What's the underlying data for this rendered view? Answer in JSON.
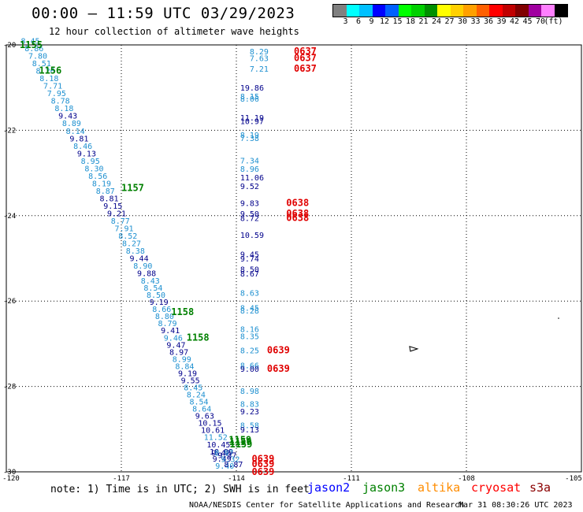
{
  "title": "00:00 – 11:59 UTC 03/29/2023",
  "subtitle": "12 hour collection of altimeter wave heights",
  "colorbar": {
    "colors": [
      "#808080",
      "#00ffff",
      "#00c0ff",
      "#0000ff",
      "#0060ff",
      "#00ff00",
      "#00d000",
      "#009000",
      "#ffff00",
      "#ffd000",
      "#ffa000",
      "#ff6000",
      "#ff0000",
      "#c00000",
      "#800000",
      "#a000a0",
      "#ff80ff",
      "#000000"
    ],
    "labels": [
      "3",
      "6",
      "9",
      "12",
      "15",
      "18",
      "21",
      "24",
      "27",
      "30",
      "33",
      "36",
      "39",
      "42",
      "45",
      "70",
      "(ft)"
    ]
  },
  "axes": {
    "lat_ticks": [
      "-20",
      "-22",
      "-24",
      "-26",
      "-28",
      "-30"
    ],
    "lon_ticks": [
      "-120",
      "-117",
      "-114",
      "-111",
      "-108",
      "-105"
    ]
  },
  "note": "note:  1) Time is in UTC;  2) SWH is in feet",
  "legend": [
    {
      "name": "jason2",
      "color": "#0000ff"
    },
    {
      "name": "jason3",
      "color": "#008000"
    },
    {
      "name": "altika",
      "color": "#ff8c00"
    },
    {
      "name": "cryosat",
      "color": "#ff0000"
    },
    {
      "name": "s3a",
      "color": "#8b0000"
    }
  ],
  "credit": "NOAA/NESDIS Center for Satellite Applications and Research",
  "timestamp": "Mar 31 08:30:26 UTC 2023",
  "colors": {
    "light": "#1e90d0",
    "dark": "#00008b",
    "time_green": "#008000",
    "time_red": "#e00000"
  },
  "track1": {
    "values": [
      "8.45",
      "8.86",
      "7.80",
      "8.51",
      "8.26",
      "8.18",
      "7.71",
      "7.95",
      "8.78",
      "8.18",
      "9.43",
      "8.89",
      "8.14",
      "9.81",
      "8.46",
      "9.13",
      "8.95",
      "8.30",
      "8.56",
      "8.19",
      "8.87",
      "8.81",
      "9.15",
      "9.21",
      "8.77",
      "7.91",
      "8.52",
      "8.27",
      "8.38",
      "9.44",
      "8.90",
      "9.88",
      "8.43",
      "8.54",
      "8.50",
      "9.19",
      "8.66",
      "8.80",
      "8.79",
      "9.41",
      "9.46",
      "9.47",
      "8.97",
      "8.99",
      "8.84",
      "9.19",
      "9.55",
      "8.45",
      "8.24",
      "8.54",
      "8.64",
      "9.63",
      "10.15",
      "10.61",
      "11.52",
      "10.45",
      "10.99",
      "9.49",
      "9.40"
    ],
    "dark_idx": [
      10,
      13,
      15,
      21,
      22,
      23,
      29,
      31,
      35,
      39,
      41,
      42,
      45,
      46,
      51,
      52,
      53,
      55,
      56,
      57
    ],
    "times": [
      {
        "t": "1155",
        "lat": -20.0,
        "lon": -119.65
      },
      {
        "t": "1156",
        "lat": -20.6,
        "lon": -119.15
      },
      {
        "t": "1157",
        "lat": -23.35,
        "lon": -117.0
      },
      {
        "t": "1158",
        "lat": -26.25,
        "lon": -115.7
      },
      {
        "t": "1158",
        "lat": -26.85,
        "lon": -115.3
      }
    ]
  },
  "track2": {
    "values": [
      {
        "v": "8.29",
        "lat": -20.15
      },
      {
        "v": "7.63",
        "lat": -20.3
      },
      {
        "v": "7.21",
        "lat": -20.55
      },
      {
        "v": "19.86",
        "lat": -21.0
      },
      {
        "v": "8.15",
        "lat": -21.2
      },
      {
        "v": "8.06",
        "lat": -21.25
      },
      {
        "v": "11.19",
        "lat": -21.7
      },
      {
        "v": "10.97",
        "lat": -21.78
      },
      {
        "v": "8.19",
        "lat": -22.1
      },
      {
        "v": "7.38",
        "lat": -22.18
      },
      {
        "v": "7.34",
        "lat": -22.7
      },
      {
        "v": "8.96",
        "lat": -22.9
      },
      {
        "v": "11.06",
        "lat": -23.1
      },
      {
        "v": "9.52",
        "lat": -23.3
      },
      {
        "v": "9.83",
        "lat": -23.7
      },
      {
        "v": "9.50",
        "lat": -23.95
      },
      {
        "v": "8.72",
        "lat": -24.05
      },
      {
        "v": "10.59",
        "lat": -24.45
      },
      {
        "v": "9.45",
        "lat": -24.9
      },
      {
        "v": "9.74",
        "lat": -25.0
      },
      {
        "v": "8.50",
        "lat": -25.25
      },
      {
        "v": "8.67",
        "lat": -25.35
      },
      {
        "v": "8.63",
        "lat": -25.8
      },
      {
        "v": "8.45",
        "lat": -26.15
      },
      {
        "v": "8.28",
        "lat": -26.22
      },
      {
        "v": "8.16",
        "lat": -26.65
      },
      {
        "v": "8.35",
        "lat": -26.82
      },
      {
        "v": "8.25",
        "lat": -27.15
      },
      {
        "v": "8.66",
        "lat": -27.5
      },
      {
        "v": "9.00",
        "lat": -27.58
      },
      {
        "v": "8.98",
        "lat": -28.1
      },
      {
        "v": "8.83",
        "lat": -28.4
      },
      {
        "v": "9.23",
        "lat": -28.58
      },
      {
        "v": "8.58",
        "lat": -28.9
      },
      {
        "v": "9.13",
        "lat": -29.0
      }
    ],
    "dark": [
      "19.86",
      "11.19",
      "10.97",
      "11.06",
      "9.52",
      "9.83",
      "9.50",
      "8.72",
      "10.59",
      "9.45",
      "9.74",
      "8.50",
      "8.67",
      "9.00",
      "9.23",
      "9.13"
    ]
  },
  "track3": {
    "values": [
      {
        "v": "9.42",
        "lat": -29.55
      },
      {
        "v": "8.97",
        "lat": -29.55
      },
      {
        "v": "9.37",
        "lat": -29.6
      },
      {
        "v": "9.32",
        "lat": -29.7
      },
      {
        "v": "8.87",
        "lat": -29.82
      }
    ]
  },
  "times_right": [
    {
      "t": "0637",
      "lat": -20.15
    },
    {
      "t": "0637",
      "lat": -20.3
    },
    {
      "t": "0637",
      "lat": -20.55
    },
    {
      "t": "0638",
      "lat": -23.7
    },
    {
      "t": "0638",
      "lat": -23.95
    },
    {
      "t": "0638",
      "lat": -24.05
    },
    {
      "t": "0639",
      "lat": -27.15
    },
    {
      "t": "0639",
      "lat": -27.58
    },
    {
      "t": "0639",
      "lat": -29.7
    },
    {
      "t": "0639",
      "lat": -29.82
    },
    {
      "t": "0639",
      "lat": -30.0
    }
  ],
  "times_bottom": [
    {
      "t": "1159",
      "lat": -29.25
    },
    {
      "t": "1159",
      "lat": -29.3
    },
    {
      "t": "1159",
      "lat": -29.35
    }
  ],
  "islands": [
    {
      "lat": -27.12,
      "lon": -109.4
    }
  ]
}
